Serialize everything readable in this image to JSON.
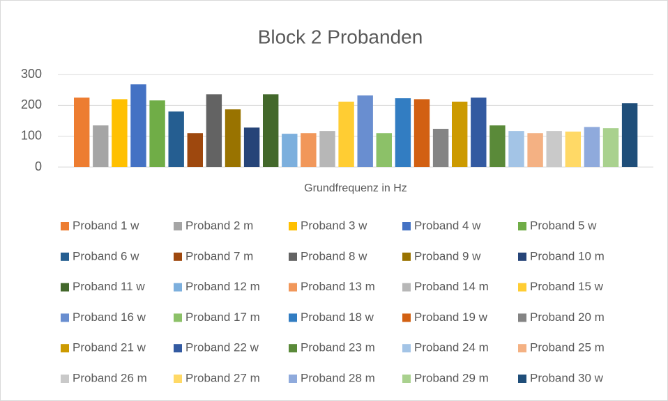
{
  "chart_data": {
    "type": "bar",
    "title": "Block 2 Probanden",
    "x_label": "Grundfrequenz in Hz",
    "categories": [
      null
    ],
    "ylim": [
      0,
      300
    ],
    "yticks": [
      0,
      100,
      200,
      300
    ],
    "grid": true,
    "legend": "bottom",
    "series": [
      {
        "name": "Proband 1 w",
        "color": "#ED7D31",
        "values": [
          225
        ]
      },
      {
        "name": "Proband 2 m",
        "color": "#A5A5A5",
        "values": [
          135
        ]
      },
      {
        "name": "Proband 3 w",
        "color": "#FFC000",
        "values": [
          220
        ]
      },
      {
        "name": "Proband 4 w",
        "color": "#4472C4",
        "values": [
          268
        ]
      },
      {
        "name": "Proband 5 w",
        "color": "#70AD47",
        "values": [
          216
        ]
      },
      {
        "name": "Proband 6 w",
        "color": "#255E91",
        "values": [
          180
        ]
      },
      {
        "name": "Proband 7 m",
        "color": "#9E480E",
        "values": [
          110
        ]
      },
      {
        "name": "Proband 8 w",
        "color": "#636363",
        "values": [
          236
        ]
      },
      {
        "name": "Proband 9 w",
        "color": "#997300",
        "values": [
          187
        ]
      },
      {
        "name": "Proband 10 m",
        "color": "#264478",
        "values": [
          128
        ]
      },
      {
        "name": "Proband 11 w",
        "color": "#43682B",
        "values": [
          236
        ]
      },
      {
        "name": "Proband 12 m",
        "color": "#7CAFDD",
        "values": [
          108
        ]
      },
      {
        "name": "Proband 13 m",
        "color": "#F1975A",
        "values": [
          110
        ]
      },
      {
        "name": "Proband 14 m",
        "color": "#B7B7B7",
        "values": [
          117
        ]
      },
      {
        "name": "Proband 15 w",
        "color": "#FFCD33",
        "values": [
          212
        ]
      },
      {
        "name": "Proband 16 w",
        "color": "#698ED0",
        "values": [
          232
        ]
      },
      {
        "name": "Proband 17 m",
        "color": "#8CC168",
        "values": [
          110
        ]
      },
      {
        "name": "Proband 18 w",
        "color": "#327DC2",
        "values": [
          223
        ]
      },
      {
        "name": "Proband 19 w",
        "color": "#D26012",
        "values": [
          220
        ]
      },
      {
        "name": "Proband 20 m",
        "color": "#848484",
        "values": [
          124
        ]
      },
      {
        "name": "Proband 21 w",
        "color": "#CC9A00",
        "values": [
          212
        ]
      },
      {
        "name": "Proband 22 w",
        "color": "#335AA1",
        "values": [
          225
        ]
      },
      {
        "name": "Proband 23 m",
        "color": "#5A8A39",
        "values": [
          135
        ]
      },
      {
        "name": "Proband 24 m",
        "color": "#A3C4E6",
        "values": [
          117
        ]
      },
      {
        "name": "Proband 25 m",
        "color": "#F4B183",
        "values": [
          110
        ]
      },
      {
        "name": "Proband 26 m",
        "color": "#C9C9C9",
        "values": [
          117
        ]
      },
      {
        "name": "Proband 27 m",
        "color": "#FFD966",
        "values": [
          115
        ]
      },
      {
        "name": "Proband 28 m",
        "color": "#8FAADC",
        "values": [
          130
        ]
      },
      {
        "name": "Proband 29 m",
        "color": "#A9D18E",
        "values": [
          126
        ]
      },
      {
        "name": "Proband 30 w",
        "color": "#1F4E79",
        "values": [
          207
        ]
      }
    ]
  }
}
